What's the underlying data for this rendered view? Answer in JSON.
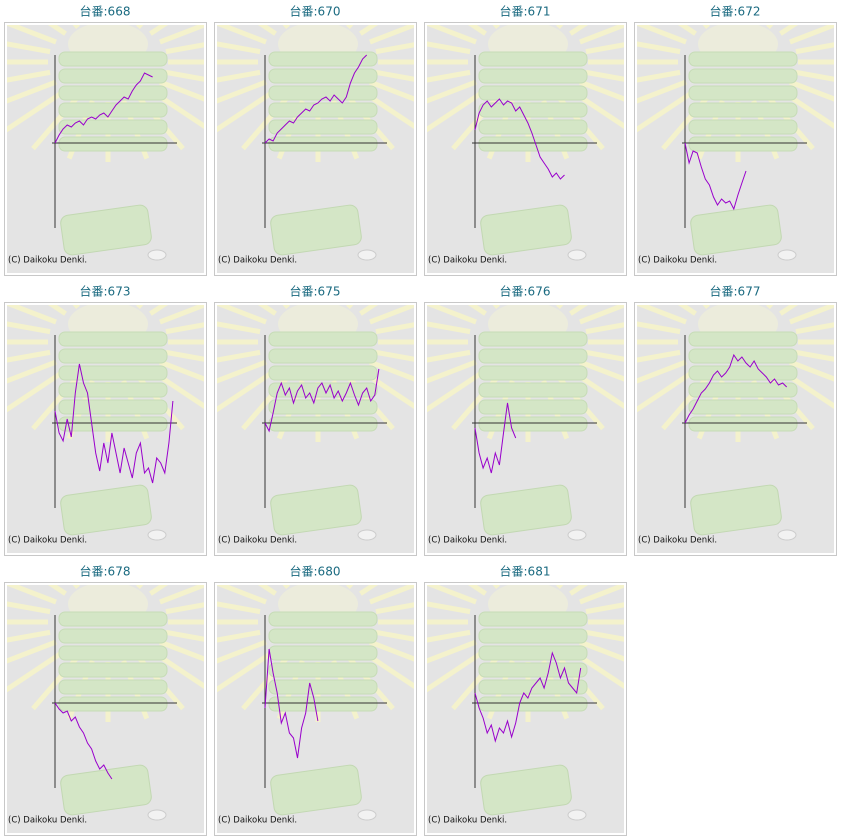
{
  "chart_data": [
    {
      "type": "line",
      "title": "台番:668",
      "annotation": "(C) Daikoku Denki.",
      "color": "#9900cc",
      "xlim": [
        0,
        30
      ],
      "ylim": [
        -85,
        88
      ],
      "yticks": [
        0
      ],
      "values": [
        0,
        8,
        14,
        18,
        16,
        20,
        22,
        18,
        24,
        26,
        24,
        28,
        30,
        26,
        32,
        38,
        42,
        46,
        44,
        52,
        58,
        62,
        70,
        68,
        66
      ]
    },
    {
      "type": "line",
      "title": "台番:670",
      "annotation": "(C) Daikoku Denki.",
      "color": "#9900cc",
      "xlim": [
        0,
        30
      ],
      "ylim": [
        -85,
        88
      ],
      "yticks": [
        0
      ],
      "values": [
        0,
        4,
        2,
        10,
        14,
        18,
        22,
        20,
        26,
        30,
        34,
        32,
        38,
        40,
        44,
        46,
        42,
        48,
        44,
        40,
        46,
        60,
        70,
        76,
        84,
        88
      ]
    },
    {
      "type": "line",
      "title": "台番:671",
      "annotation": "(C) Daikoku Denki.",
      "color": "#9900cc",
      "xlim": [
        0,
        30
      ],
      "ylim": [
        -85,
        88
      ],
      "yticks": [
        0
      ],
      "values": [
        13,
        30,
        38,
        42,
        36,
        40,
        44,
        38,
        42,
        40,
        32,
        36,
        28,
        20,
        10,
        -2,
        -14,
        -20,
        -26,
        -34,
        -30,
        -36,
        -32
      ]
    },
    {
      "type": "line",
      "title": "台番:672",
      "annotation": "(C) Daikoku Denki.",
      "color": "#9900cc",
      "xlim": [
        0,
        30
      ],
      "ylim": [
        -85,
        88
      ],
      "yticks": [
        0
      ],
      "values": [
        0,
        -20,
        -8,
        -10,
        -24,
        -36,
        -42,
        -54,
        -62,
        -56,
        -60,
        -58,
        -66,
        -52,
        -40,
        -28
      ]
    },
    {
      "type": "line",
      "title": "台番:673",
      "annotation": "(C) Daikoku Denki.",
      "color": "#9900cc",
      "xlim": [
        0,
        30
      ],
      "ylim": [
        -85,
        88
      ],
      "yticks": [
        0
      ],
      "values": [
        12,
        -10,
        -18,
        4,
        -14,
        30,
        59,
        40,
        30,
        0,
        -30,
        -48,
        -20,
        -40,
        -10,
        -30,
        -50,
        -25,
        -40,
        -55,
        -30,
        -20,
        -50,
        -45,
        -60,
        -35,
        -40,
        -50,
        -20,
        22
      ]
    },
    {
      "type": "line",
      "title": "台番:675",
      "annotation": "(C) Daikoku Denki.",
      "color": "#9900cc",
      "xlim": [
        0,
        30
      ],
      "ylim": [
        -85,
        88
      ],
      "yticks": [
        0
      ],
      "values": [
        0,
        -8,
        10,
        30,
        40,
        28,
        35,
        20,
        32,
        38,
        25,
        30,
        20,
        35,
        40,
        30,
        38,
        25,
        32,
        22,
        30,
        40,
        28,
        18,
        30,
        35,
        22,
        28,
        54
      ]
    },
    {
      "type": "line",
      "title": "台番:676",
      "annotation": "(C) Daikoku Denki.",
      "color": "#9900cc",
      "xlim": [
        0,
        30
      ],
      "ylim": [
        -85,
        88
      ],
      "yticks": [
        0
      ],
      "values": [
        -5,
        -30,
        -45,
        -35,
        -50,
        -30,
        -42,
        -10,
        20,
        -5,
        -15
      ]
    },
    {
      "type": "line",
      "title": "台番:677",
      "annotation": "(C) Daikoku Denki.",
      "color": "#9900cc",
      "xlim": [
        0,
        30
      ],
      "ylim": [
        -85,
        88
      ],
      "yticks": [
        0
      ],
      "values": [
        0,
        8,
        14,
        22,
        30,
        34,
        40,
        48,
        52,
        46,
        50,
        56,
        68,
        62,
        66,
        60,
        56,
        62,
        54,
        50,
        46,
        40,
        44,
        38,
        40,
        36
      ]
    },
    {
      "type": "line",
      "title": "台番:678",
      "annotation": "(C) Daikoku Denki.",
      "color": "#9900cc",
      "xlim": [
        0,
        30
      ],
      "ylim": [
        -85,
        88
      ],
      "yticks": [
        0
      ],
      "values": [
        0,
        -6,
        -10,
        -8,
        -18,
        -14,
        -24,
        -30,
        -40,
        -46,
        -58,
        -66,
        -62,
        -70,
        -76
      ]
    },
    {
      "type": "line",
      "title": "台番:680",
      "annotation": "(C) Daikoku Denki.",
      "color": "#9900cc",
      "xlim": [
        0,
        30
      ],
      "ylim": [
        -85,
        88
      ],
      "yticks": [
        0
      ],
      "values": [
        -5,
        54,
        30,
        10,
        -20,
        -10,
        -30,
        -35,
        -55,
        -25,
        -10,
        20,
        5,
        -18
      ]
    },
    {
      "type": "line",
      "title": "台番:681",
      "annotation": "(C) Daikoku Denki.",
      "color": "#9900cc",
      "xlim": [
        0,
        30
      ],
      "ylim": [
        -85,
        88
      ],
      "yticks": [
        0
      ],
      "values": [
        10,
        -5,
        -15,
        -30,
        -22,
        -38,
        -25,
        -30,
        -18,
        -34,
        -20,
        0,
        10,
        5,
        15,
        20,
        25,
        15,
        30,
        50,
        40,
        25,
        35,
        20,
        15,
        10,
        35
      ]
    }
  ]
}
